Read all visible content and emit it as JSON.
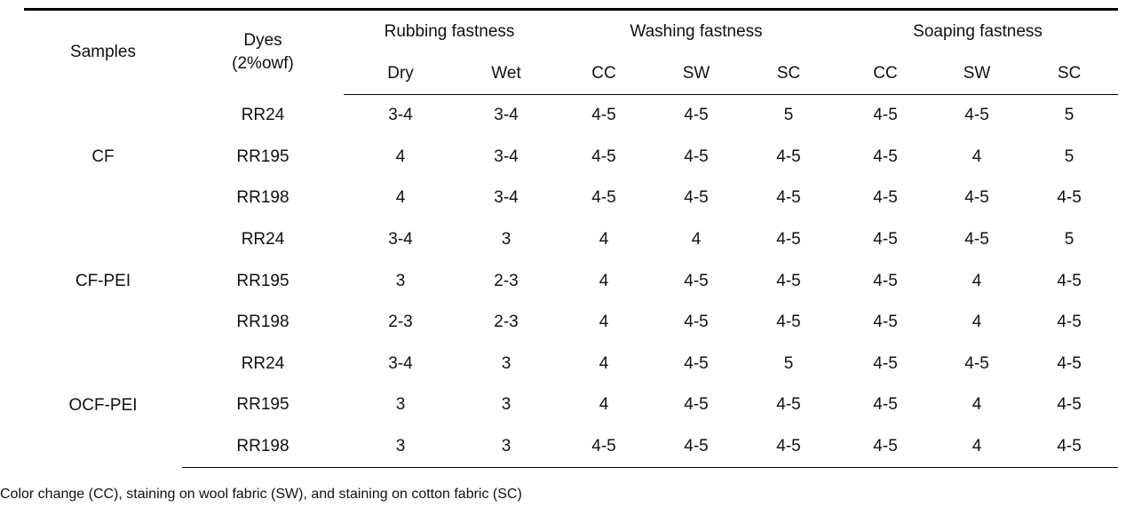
{
  "header": {
    "samples": "Samples",
    "dyes_line1": "Dyes",
    "dyes_line2": "(2%owf)",
    "rubbing": "Rubbing fastness",
    "washing": "Washing fastness",
    "soaping": "Soaping fastness",
    "dry": "Dry",
    "wet": "Wet",
    "w_cc": "CC",
    "w_sw": "SW",
    "w_sc": "SC",
    "s_cc": "CC",
    "s_sw": "SW",
    "s_sc": "SC"
  },
  "groups": [
    {
      "sample": "CF",
      "rows": [
        {
          "dye": "RR24",
          "dry": "3-4",
          "wet": "3-4",
          "w_cc": "4-5",
          "w_sw": "4-5",
          "w_sc": "5",
          "s_cc": "4-5",
          "s_sw": "4-5",
          "s_sc": "5"
        },
        {
          "dye": "RR195",
          "dry": "4",
          "wet": "3-4",
          "w_cc": "4-5",
          "w_sw": "4-5",
          "w_sc": "4-5",
          "s_cc": "4-5",
          "s_sw": "4",
          "s_sc": "5"
        },
        {
          "dye": "RR198",
          "dry": "4",
          "wet": "3-4",
          "w_cc": "4-5",
          "w_sw": "4-5",
          "w_sc": "4-5",
          "s_cc": "4-5",
          "s_sw": "4-5",
          "s_sc": "4-5"
        }
      ]
    },
    {
      "sample": "CF-PEI",
      "rows": [
        {
          "dye": "RR24",
          "dry": "3-4",
          "wet": "3",
          "w_cc": "4",
          "w_sw": "4",
          "w_sc": "4-5",
          "s_cc": "4-5",
          "s_sw": "4-5",
          "s_sc": "5"
        },
        {
          "dye": "RR195",
          "dry": "3",
          "wet": "2-3",
          "w_cc": "4",
          "w_sw": "4-5",
          "w_sc": "4-5",
          "s_cc": "4-5",
          "s_sw": "4",
          "s_sc": "4-5"
        },
        {
          "dye": "RR198",
          "dry": "2-3",
          "wet": "2-3",
          "w_cc": "4",
          "w_sw": "4-5",
          "w_sc": "4-5",
          "s_cc": "4-5",
          "s_sw": "4",
          "s_sc": "4-5"
        }
      ]
    },
    {
      "sample": "OCF-PEI",
      "rows": [
        {
          "dye": "RR24",
          "dry": "3-4",
          "wet": "3",
          "w_cc": "4",
          "w_sw": "4-5",
          "w_sc": "5",
          "s_cc": "4-5",
          "s_sw": "4-5",
          "s_sc": "4-5"
        },
        {
          "dye": "RR195",
          "dry": "3",
          "wet": "3",
          "w_cc": "4",
          "w_sw": "4-5",
          "w_sc": "4-5",
          "s_cc": "4-5",
          "s_sw": "4",
          "s_sc": "4-5"
        },
        {
          "dye": "RR198",
          "dry": "3",
          "wet": "3",
          "w_cc": "4-5",
          "w_sw": "4-5",
          "w_sc": "4-5",
          "s_cc": "4-5",
          "s_sw": "4",
          "s_sc": "4-5"
        }
      ]
    }
  ],
  "footnote": "Color change (CC), staining on wool fabric (SW), and staining on cotton fabric (SC)"
}
